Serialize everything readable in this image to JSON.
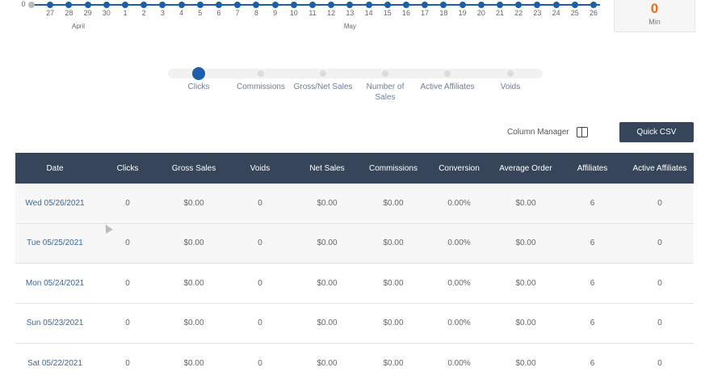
{
  "timeline": {
    "days": [
      "0",
      "27",
      "28",
      "29",
      "30",
      "1",
      "2",
      "3",
      "4",
      "5",
      "6",
      "7",
      "8",
      "9",
      "10",
      "11",
      "12",
      "13",
      "14",
      "15",
      "16",
      "17",
      "18",
      "19",
      "20",
      "21",
      "22",
      "23",
      "24",
      "25",
      "26"
    ],
    "months": [
      "April",
      "May"
    ]
  },
  "stat": {
    "value": "0",
    "label": "Min"
  },
  "metrics": [
    {
      "label": "Clicks",
      "active": true
    },
    {
      "label": "Commissions",
      "active": false
    },
    {
      "label": "Gross/Net Sales",
      "active": false
    },
    {
      "label": "Number of Sales",
      "active": false
    },
    {
      "label": "Active Affiliates",
      "active": false
    },
    {
      "label": "Voids",
      "active": false
    }
  ],
  "toolbar": {
    "column_manager_label": "Column Manager",
    "column_manager_icon": "columns-icon",
    "csv_label": "Quick CSV"
  },
  "table": {
    "headers": [
      "Date",
      "Clicks",
      "Gross Sales",
      "Voids",
      "Net Sales",
      "Commissions",
      "Conversion",
      "Average Order",
      "Affiliates",
      "Active Affiliates"
    ],
    "rows": [
      [
        "Wed 05/26/2021",
        "0",
        "$0.00",
        "0",
        "$0.00",
        "$0.00",
        "0.00%",
        "$0.00",
        "6",
        "0"
      ],
      [
        "Tue 05/25/2021",
        "0",
        "$0.00",
        "0",
        "$0.00",
        "$0.00",
        "0.00%",
        "$0.00",
        "6",
        "0"
      ],
      [
        "Mon 05/24/2021",
        "0",
        "$0.00",
        "0",
        "$0.00",
        "$0.00",
        "0.00%",
        "$0.00",
        "6",
        "0"
      ],
      [
        "Sun 05/23/2021",
        "0",
        "$0.00",
        "0",
        "$0.00",
        "$0.00",
        "0.00%",
        "$0.00",
        "6",
        "0"
      ],
      [
        "Sat 05/22/2021",
        "0",
        "$0.00",
        "0",
        "$0.00",
        "$0.00",
        "0.00%",
        "$0.00",
        "6",
        "0"
      ]
    ]
  },
  "colors": {
    "accent": "#1a5fa8",
    "header_bg": "#364559",
    "stat_value": "#e8701f",
    "link": "#3a679c"
  }
}
